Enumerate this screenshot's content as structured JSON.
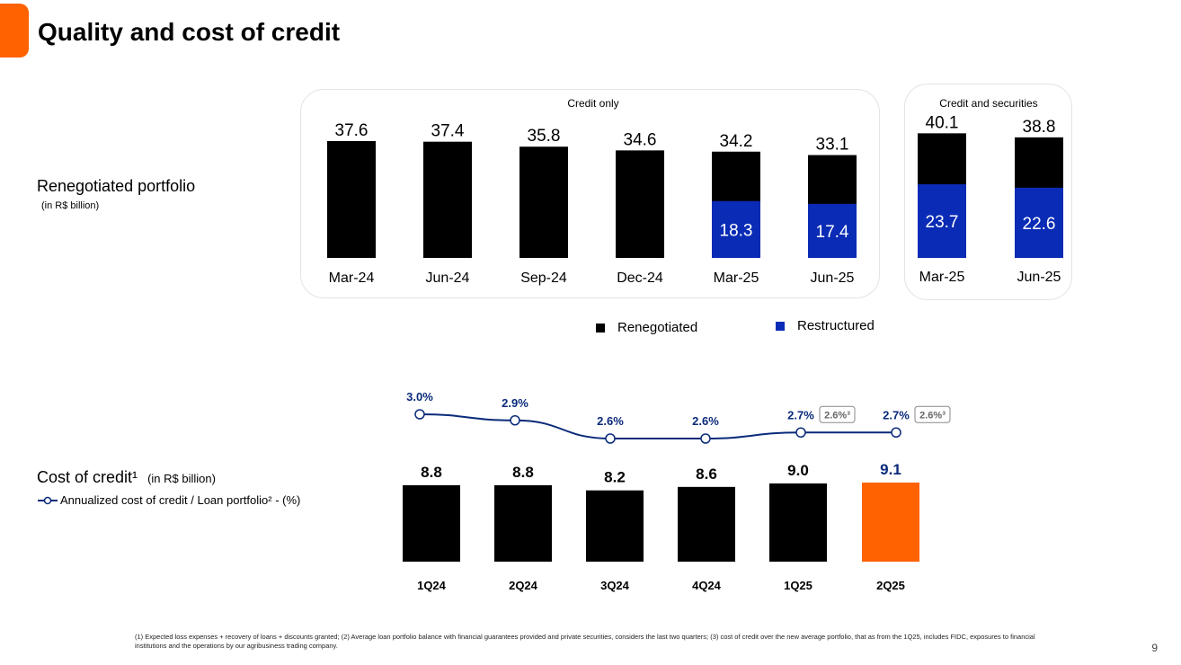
{
  "page": {
    "title": "Quality and cost of credit",
    "page_number": "9",
    "footnote": "(1) Expected loss expenses + recovery of loans + discounts granted; (2) Average loan portfolio balance with financial guarantees provided and private securities, considers the last two quarters; (3) cost of credit over the new average portfolio, that as from the 1Q25, includes FIDC, exposures to financial institutions and the operations by our agribusiness trading company."
  },
  "colors": {
    "accent": "#ff6200",
    "renegotiated": "#000000",
    "restructured": "#0a2bb5",
    "line": "#0a2a7a"
  },
  "renegotiated_section": {
    "label": "Renegotiated portfolio",
    "unit": "(in R$ billion)",
    "legend_renegotiated": "Renegotiated",
    "legend_restructured": "Restructured"
  },
  "cost_section": {
    "label": "Cost of credit¹",
    "unit": "(in R$ billion)",
    "line_legend": "Annualized cost of credit / Loan portfolio² - (%)"
  },
  "chart_data": [
    {
      "type": "bar",
      "title": "Credit only",
      "categories": [
        "Mar-24",
        "Jun-24",
        "Sep-24",
        "Dec-24",
        "Mar-25",
        "Jun-25"
      ],
      "totals": [
        37.6,
        37.4,
        35.8,
        34.6,
        34.2,
        33.1
      ],
      "total_labels": [
        "37.6",
        "37.4",
        "35.8",
        "34.6",
        "34.2",
        "33.1"
      ],
      "series": [
        {
          "name": "Restructured",
          "values": [
            0,
            0,
            0,
            0,
            18.3,
            17.4
          ],
          "labels": [
            "",
            "",
            "",
            "",
            "18.3",
            "17.4"
          ]
        }
      ],
      "ylim": [
        0,
        40
      ]
    },
    {
      "type": "bar",
      "title": "Credit and securities",
      "categories": [
        "Mar-25",
        "Jun-25"
      ],
      "totals": [
        40.1,
        38.8
      ],
      "total_labels": [
        "40.1",
        "38.8"
      ],
      "series": [
        {
          "name": "Restructured",
          "values": [
            23.7,
            22.6
          ],
          "labels": [
            "23.7",
            "22.6"
          ]
        }
      ],
      "ylim": [
        0,
        40
      ]
    },
    {
      "type": "bar",
      "title": "Cost of credit",
      "categories": [
        "1Q24",
        "2Q24",
        "3Q24",
        "4Q24",
        "1Q25",
        "2Q25"
      ],
      "values": [
        8.8,
        8.8,
        8.2,
        8.6,
        9.0,
        9.1
      ],
      "value_labels": [
        "8.8",
        "8.8",
        "8.2",
        "8.6",
        "9.0",
        "9.1"
      ],
      "highlight_index": 5,
      "ylim": [
        0,
        9.5
      ],
      "line": {
        "name": "Annualized cost of credit / Loan portfolio² - (%)",
        "values": [
          3.0,
          2.9,
          2.6,
          2.6,
          2.7,
          2.7
        ],
        "labels": [
          "3.0%",
          "2.9%",
          "2.6%",
          "2.6%",
          "2.7%",
          "2.7%"
        ],
        "alt_labels": [
          "",
          "",
          "",
          "",
          "2.6%³",
          "2.6%³"
        ]
      }
    }
  ]
}
